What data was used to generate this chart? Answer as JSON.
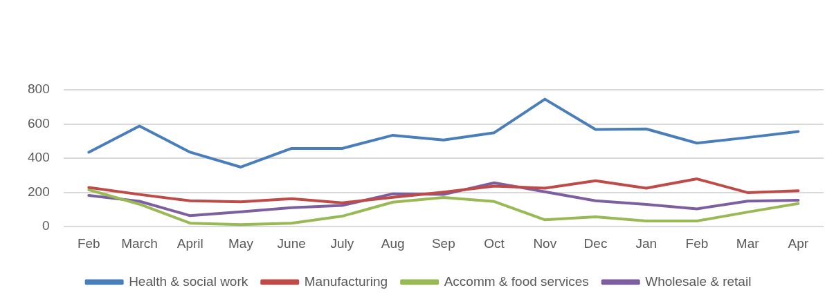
{
  "chart_data": {
    "type": "line",
    "categories": [
      "Feb",
      "March",
      "April",
      "May",
      "June",
      "July",
      "Aug",
      "Sep",
      "Oct",
      "Nov",
      "Dec",
      "Jan",
      "Feb",
      "Mar",
      "Apr"
    ],
    "series": [
      {
        "name": "Health & social work",
        "color": "#4a7ebb",
        "values": [
          435,
          588,
          435,
          348,
          457,
          457,
          534,
          506,
          549,
          745,
          568,
          571,
          488,
          521,
          556
        ]
      },
      {
        "name": "Manufacturing",
        "color": "#be4b48",
        "values": [
          229,
          188,
          151,
          145,
          163,
          139,
          171,
          202,
          237,
          225,
          268,
          225,
          279,
          199,
          210
        ]
      },
      {
        "name": "Accomm & food services",
        "color": "#98b954",
        "values": [
          215,
          131,
          20,
          12,
          20,
          61,
          143,
          170,
          147,
          40,
          57,
          33,
          33,
          85,
          135
        ]
      },
      {
        "name": "Wholesale & retail",
        "color": "#7d5fa0",
        "values": [
          182,
          148,
          64,
          87,
          111,
          124,
          192,
          188,
          256,
          204,
          151,
          130,
          104,
          149,
          154
        ]
      }
    ],
    "ylim": [
      0,
      800
    ],
    "yticks": [
      0,
      200,
      400,
      600,
      800
    ],
    "grid": "y",
    "legend": "bottom",
    "marker": "none",
    "line_style": "solid"
  }
}
